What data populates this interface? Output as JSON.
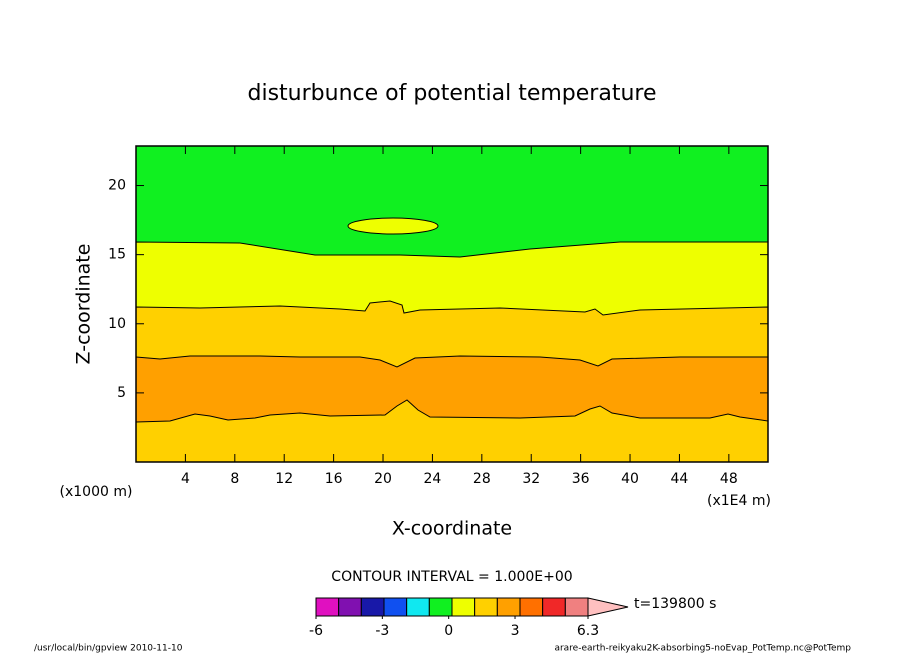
{
  "chart_data": {
    "type": "contour",
    "title": "disturbunce of potential temperature",
    "x_label": "X-coordinate",
    "y_label": "Z-coordinate",
    "x_unit": "(x1E4 m)",
    "y_unit": "(x1000 m)",
    "xlim": [
      0,
      51.17
    ],
    "xticks": [
      4,
      8,
      12,
      16,
      20,
      24,
      28,
      32,
      36,
      40,
      44,
      48
    ],
    "ylim": [
      0,
      22.86
    ],
    "yticks": [
      5,
      10,
      15,
      20
    ],
    "contour_interval": "CONTOUR INTERVAL = 1.000E+00",
    "time": "t=139800 s",
    "colorbar": {
      "lim": [
        -6,
        6.3
      ],
      "ticks": [
        -6,
        -3,
        0,
        3,
        6.3
      ],
      "colors": [
        "#e010c0",
        "#8010b0",
        "#1818a8",
        "#1050f0",
        "#10e8f0",
        "#10f020",
        "#eeff00",
        "#ffd000",
        "#ffa000",
        "#ff7000",
        "#f02828",
        "#f08080"
      ],
      "over_color": "#ffc0c0"
    },
    "footer_left": "/usr/local/bin/gpview  2010-11-10",
    "footer_right": "arare-earth-reikyaku2K-absorbing5-noEvap_PotTemp.nc@PotTemp"
  }
}
